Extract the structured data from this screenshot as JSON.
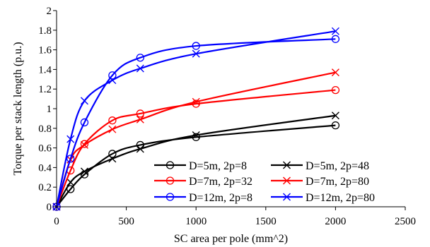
{
  "chart_data": {
    "type": "line",
    "xlabel": "SC area per pole (mm^2)",
    "ylabel": "Torque per stack length (p.u.)",
    "xlim": [
      0,
      2500
    ],
    "ylim": [
      0,
      2
    ],
    "xticks": [
      0,
      500,
      1000,
      1500,
      2000,
      2500
    ],
    "yticks": [
      0,
      0.2,
      0.4,
      0.6,
      0.8,
      1,
      1.2,
      1.4,
      1.6,
      1.8,
      2
    ],
    "grid": false,
    "legend_position": "bottom-right",
    "series": [
      {
        "name": "D=5m, 2p=8",
        "color": "#000000",
        "marker": "circle",
        "x": [
          0,
          100,
          200,
          400,
          600,
          1000,
          2000
        ],
        "y": [
          0,
          0.18,
          0.33,
          0.54,
          0.63,
          0.71,
          0.83
        ]
      },
      {
        "name": "D=5m, 2p=48",
        "color": "#000000",
        "marker": "cross",
        "x": [
          0,
          100,
          200,
          400,
          600,
          1000,
          2000
        ],
        "y": [
          0,
          0.25,
          0.36,
          0.49,
          0.59,
          0.73,
          0.93
        ]
      },
      {
        "name": "D=7m, 2p=32",
        "color": "#ff0000",
        "marker": "circle",
        "x": [
          0,
          100,
          200,
          400,
          600,
          1000,
          2000
        ],
        "y": [
          0,
          0.37,
          0.64,
          0.88,
          0.95,
          1.05,
          1.19
        ]
      },
      {
        "name": "D=7m, 2p=80",
        "color": "#ff0000",
        "marker": "cross",
        "x": [
          0,
          100,
          200,
          400,
          600,
          1000,
          2000
        ],
        "y": [
          0,
          0.48,
          0.63,
          0.79,
          0.89,
          1.07,
          1.37
        ]
      },
      {
        "name": "D=12m, 2p=8",
        "color": "#0000ff",
        "marker": "circle",
        "x": [
          0,
          100,
          200,
          400,
          600,
          1000,
          2000
        ],
        "y": [
          0,
          0.49,
          0.86,
          1.34,
          1.52,
          1.64,
          1.71
        ]
      },
      {
        "name": "D=12m, 2p=80",
        "color": "#0000ff",
        "marker": "cross",
        "x": [
          0,
          100,
          200,
          400,
          600,
          1000,
          2000
        ],
        "y": [
          0,
          0.69,
          1.08,
          1.29,
          1.41,
          1.56,
          1.79
        ]
      }
    ]
  }
}
